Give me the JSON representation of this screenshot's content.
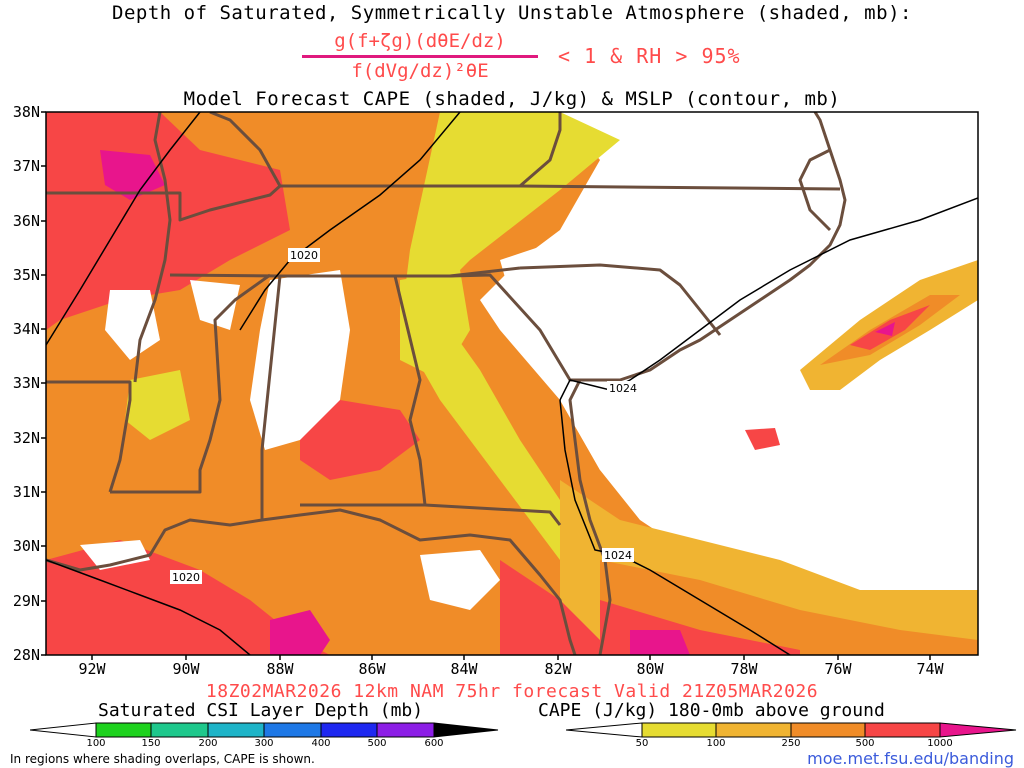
{
  "header": {
    "title_line1": "Depth of Saturated, Symmetrically Unstable Atmosphere (shaded, mb):",
    "fraction_numerator": "g(f+ζg)(dθE/dz)",
    "fraction_denominator": "f(dVg/dz)²θE",
    "condition": "< 1 & RH > 95%",
    "title_line3": "Model Forecast CAPE (shaded, J/kg) & MSLP (contour, mb)"
  },
  "map": {
    "lon_ticks": [
      "92W",
      "90W",
      "88W",
      "86W",
      "84W",
      "82W",
      "80W",
      "78W",
      "76W",
      "74W"
    ],
    "lat_ticks": [
      "38N",
      "37N",
      "36N",
      "35N",
      "34N",
      "33N",
      "32N",
      "31N",
      "30N",
      "29N",
      "28N"
    ],
    "isobar_labels": [
      "1020",
      "1024",
      "1024",
      "1020"
    ],
    "colors": {
      "cape_50": "#e6dc32",
      "cape_100": "#f0b432",
      "cape_250": "#f08c28",
      "cape_500": "#f74646",
      "cape_1000": "#e8158c",
      "borders": "#6b4e3d",
      "isobar": "#000000"
    }
  },
  "footer": {
    "valid_line": "18Z02MAR2026 12km NAM 75hr forecast Valid 21Z05MAR2026",
    "csi_title": "Saturated CSI Layer Depth (mb)",
    "csi_levels": [
      "100",
      "150",
      "200",
      "300",
      "400",
      "500",
      "600"
    ],
    "cape_title": "CAPE (J/kg) 180-0mb above ground",
    "cape_levels": [
      "50",
      "100",
      "250",
      "500",
      "1000"
    ],
    "note": "In regions where shading overlaps, CAPE is shown.",
    "url": "moe.met.fsu.edu/banding"
  }
}
